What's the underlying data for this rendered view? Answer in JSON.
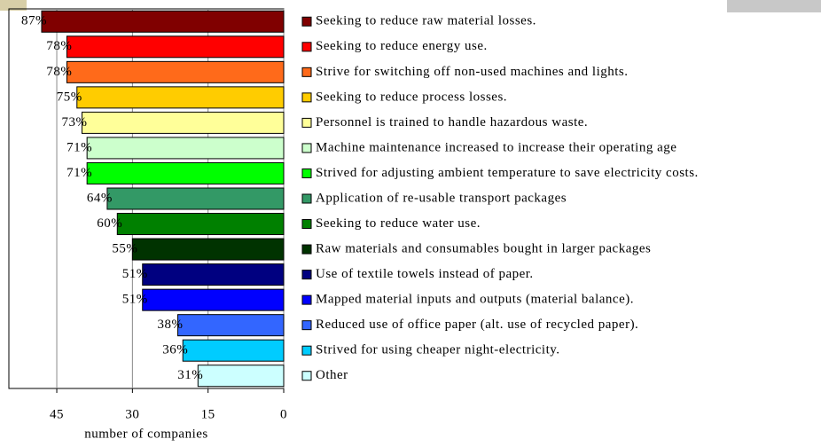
{
  "chart_data": {
    "type": "hbar",
    "x_label": "number of companies",
    "categories": [
      "Seeking to reduce raw material losses.",
      "Seeking to reduce energy use.",
      "Strive for switching off non-used machines and lights.",
      "Seeking to reduce process losses.",
      "Personnel is trained to handle hazardous waste.",
      "Machine maintenance increased to increase their operating age",
      "Strived for adjusting ambient temperature to save electricity costs.",
      "Application of re-usable transport packages",
      "Seeking to reduce water use.",
      "Raw materials and consumables bought in larger packages",
      "Use of textile towels instead of paper.",
      "Mapped material inputs and outputs (material balance).",
      "Reduced use of office paper (alt. use of recycled paper).",
      "Strived for using cheaper night-electricity.",
      "Other"
    ],
    "values": [
      48,
      43,
      43,
      41,
      40,
      39,
      39,
      35,
      33,
      30,
      28,
      28,
      21,
      20,
      17
    ],
    "data_labels": [
      "87%",
      "78%",
      "78%",
      "75%",
      "73%",
      "71%",
      "71%",
      "64%",
      "60%",
      "55%",
      "51%",
      "51%",
      "38%",
      "36%",
      "31%"
    ],
    "colors": [
      "#800000",
      "#ff0000",
      "#ff6a1a",
      "#ffcc00",
      "#ffff99",
      "#ccffcc",
      "#00ff00",
      "#339966",
      "#008000",
      "#003300",
      "#000080",
      "#0000ff",
      "#3366ff",
      "#00ccff",
      "#ccffff"
    ],
    "xlim": [
      54.5,
      0
    ],
    "xticks": [
      45,
      30,
      15,
      0
    ],
    "grid": true
  }
}
